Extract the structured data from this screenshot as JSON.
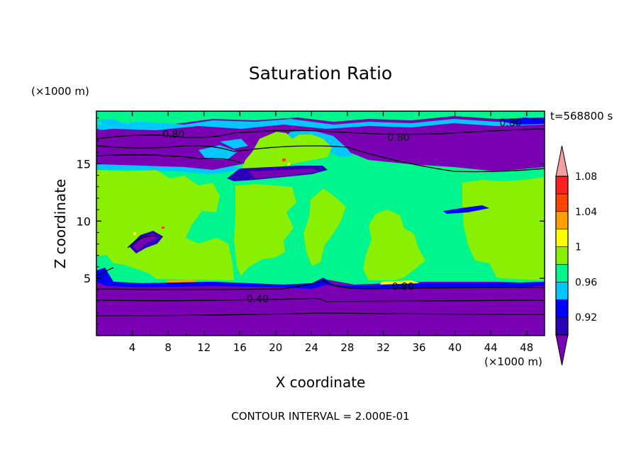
{
  "chart_data": {
    "type": "heatmap",
    "title": "Saturation Ratio",
    "xlabel": "X coordinate",
    "ylabel": "Z coordinate",
    "x_unit": "(×1000 m)",
    "y_unit": "(×1000 m)",
    "time_label": "t=568800 s",
    "footer": "CONTOUR INTERVAL = 2.000E-01",
    "xlim": [
      0,
      50
    ],
    "ylim": [
      0,
      19.6
    ],
    "x_ticks": [
      4,
      8,
      12,
      16,
      20,
      24,
      28,
      32,
      36,
      40,
      44,
      48
    ],
    "y_ticks": [
      5,
      10,
      15
    ],
    "colorbar": {
      "levels": [
        0.92,
        0.96,
        1,
        1.04,
        1.08
      ],
      "tick_labels": [
        "0.92",
        "0.96",
        "1",
        "1.04",
        "1.08"
      ],
      "colors": [
        "#7a00b4",
        "#2a00b8",
        "#0000ff",
        "#00c8ff",
        "#00f58c",
        "#88f000",
        "#ffff00",
        "#ffa000",
        "#ff4400",
        "#ff2020",
        "#f4a0a0"
      ]
    },
    "contour_labels": [
      {
        "text": "0.80",
        "x": 8.6,
        "z": 17.6
      },
      {
        "text": "0.80",
        "x": 33.7,
        "z": 17.3
      },
      {
        "text": "0.80",
        "x": 46.2,
        "z": 18.6
      },
      {
        "text": "0.80",
        "x": 34.2,
        "z": 4.3
      },
      {
        "text": "0.40",
        "x": 18.0,
        "z": 3.2
      }
    ]
  }
}
